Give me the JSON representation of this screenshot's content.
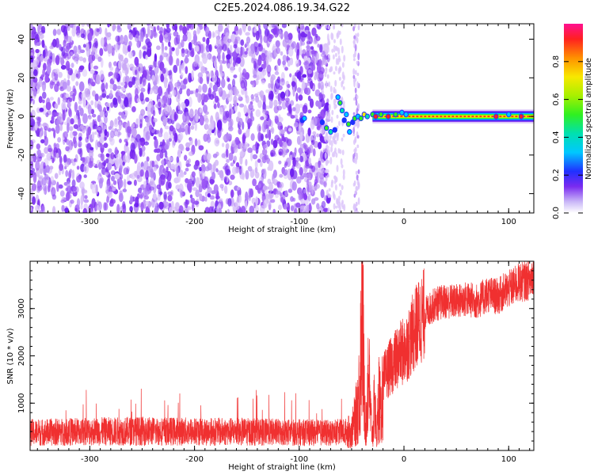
{
  "title": "C2E5.2024.086.19.34.G22",
  "chart_data": [
    {
      "type": "heatmap",
      "xlabel": "Height of straight line (km)",
      "ylabel": "Frequency (Hz)",
      "xlim": [
        -357,
        124
      ],
      "ylim": [
        -50,
        48
      ],
      "xticks": [
        "-300",
        "-200",
        "-100",
        "0",
        "100"
      ],
      "yticks": [
        "40",
        "20",
        "0",
        "-20",
        "-40"
      ],
      "grid": false,
      "colorbar": {
        "label": "Normalized spectral amplitude",
        "ticks": [
          "0.0",
          "0.2",
          "0.4",
          "0.6",
          "0.8"
        ],
        "range": [
          0,
          1
        ]
      },
      "annotations": [
        {
          "description": "broadband noise speckle (amplitude ~0.05-0.15) for heights below about -72 km"
        },
        {
          "description": "sparse speckle strip near -45 km"
        },
        {
          "description": "narrow signal band near 0 Hz from about -50 km to 124 km, amplitude ~0.9"
        }
      ],
      "signal_band": {
        "x_start": -50,
        "x_end": 124,
        "frequency": 0,
        "amplitude": 0.9
      },
      "noise_region": {
        "x_start": -357,
        "x_end": -72,
        "amplitude_range": [
          0.05,
          0.15
        ]
      }
    },
    {
      "type": "line",
      "xlabel": "Height of straight line (km)",
      "ylabel": "SNR (10 * v/v)",
      "xlim": [
        -357,
        124
      ],
      "ylim": [
        0,
        4000
      ],
      "xticks": [
        "-300",
        "-200",
        "-100",
        "0",
        "100"
      ],
      "yticks": [
        "1000",
        "2000",
        "3000"
      ],
      "grid": false,
      "color": "#f03030",
      "series": [
        {
          "x": [
            -357,
            -300,
            -250,
            -200,
            -150,
            -100,
            -70,
            -50,
            -45,
            -42,
            -40,
            -38,
            -36,
            -34,
            -32,
            -30,
            -28,
            -26,
            -24,
            -22,
            -20,
            -15,
            -10,
            -5,
            0,
            5,
            10,
            15,
            20,
            30,
            40,
            50,
            60,
            70,
            80,
            90,
            95,
            100,
            110,
            120,
            124
          ],
          "y": [
            380,
            400,
            410,
            400,
            395,
            380,
            370,
            400,
            800,
            1400,
            3650,
            1200,
            500,
            1800,
            800,
            300,
            1100,
            200,
            1300,
            700,
            1500,
            1700,
            1850,
            2000,
            2100,
            2300,
            2550,
            2750,
            2900,
            3100,
            3150,
            3150,
            3200,
            3150,
            3300,
            3250,
            3350,
            3400,
            3550,
            3600,
            3750
          ]
        }
      ]
    }
  ],
  "colors": {
    "signal_line": "#f03030",
    "noise_purple": "#7a2bf0",
    "noise_light": "#c9a8f5"
  }
}
